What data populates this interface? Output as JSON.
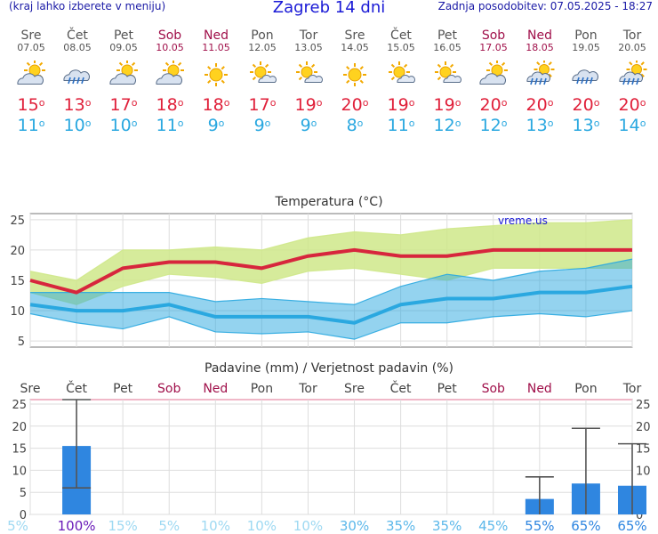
{
  "header": {
    "left": "(kraj lahko izberete v meniju)",
    "title": "Zagreb 14 dni",
    "updated": "Zadnja posodobitev: 07.05.2025 - 18:27"
  },
  "days": [
    {
      "name": "Sre",
      "date": "07.05",
      "weekend": false,
      "icon": "partly-cloudy-icon",
      "tmax": "15",
      "tmin": "11"
    },
    {
      "name": "Čet",
      "date": "08.05",
      "weekend": false,
      "icon": "rain-cloud-icon",
      "tmax": "13",
      "tmin": "10"
    },
    {
      "name": "Pet",
      "date": "09.05",
      "weekend": false,
      "icon": "partly-cloudy-icon",
      "tmax": "17",
      "tmin": "10"
    },
    {
      "name": "Sob",
      "date": "10.05",
      "weekend": true,
      "icon": "partly-cloudy-icon",
      "tmax": "18",
      "tmin": "11"
    },
    {
      "name": "Ned",
      "date": "11.05",
      "weekend": true,
      "icon": "sun-icon",
      "tmax": "18",
      "tmin": "9"
    },
    {
      "name": "Pon",
      "date": "12.05",
      "weekend": false,
      "icon": "sun-small-cloud-icon",
      "tmax": "17",
      "tmin": "9"
    },
    {
      "name": "Tor",
      "date": "13.05",
      "weekend": false,
      "icon": "sun-small-cloud-icon",
      "tmax": "19",
      "tmin": "9"
    },
    {
      "name": "Sre",
      "date": "14.05",
      "weekend": false,
      "icon": "sun-icon",
      "tmax": "20",
      "tmin": "8"
    },
    {
      "name": "Čet",
      "date": "15.05",
      "weekend": false,
      "icon": "sun-small-cloud-icon",
      "tmax": "19",
      "tmin": "11"
    },
    {
      "name": "Pet",
      "date": "16.05",
      "weekend": false,
      "icon": "sun-small-cloud-icon",
      "tmax": "19",
      "tmin": "12"
    },
    {
      "name": "Sob",
      "date": "17.05",
      "weekend": true,
      "icon": "partly-cloudy-icon",
      "tmax": "20",
      "tmin": "12"
    },
    {
      "name": "Ned",
      "date": "18.05",
      "weekend": true,
      "icon": "sun-rain-icon",
      "tmax": "20",
      "tmin": "13"
    },
    {
      "name": "Pon",
      "date": "19.05",
      "weekend": false,
      "icon": "rain-cloud-icon",
      "tmax": "20",
      "tmin": "13"
    },
    {
      "name": "Tor",
      "date": "20.05",
      "weekend": false,
      "icon": "sun-rain-icon",
      "tmax": "20",
      "tmin": "14"
    }
  ],
  "chart_data": [
    {
      "type": "line",
      "title": "Temperatura (°C)",
      "watermark": "vreme.us",
      "ylim": [
        4,
        26
      ],
      "yticks": [
        5,
        10,
        15,
        20,
        25
      ],
      "grid": true,
      "colors": {
        "max": "#d7263d",
        "max_band": "#cfe88a",
        "min": "#2aa8e0",
        "min_band": "#8fd9ee",
        "overlap": "#6fcf8e"
      },
      "series": [
        {
          "key": "max",
          "values": [
            15,
            13,
            17,
            18,
            18,
            17,
            19,
            20,
            19,
            19,
            20,
            20,
            20,
            20
          ]
        },
        {
          "key": "max_hi",
          "values": [
            16.5,
            15,
            20,
            20,
            20.5,
            20,
            22,
            23,
            22.5,
            23.5,
            24,
            24.5,
            24.5,
            25
          ]
        },
        {
          "key": "max_lo",
          "values": [
            13,
            11,
            14,
            16,
            15.5,
            14.5,
            16.5,
            17,
            16,
            15,
            17,
            17,
            17,
            17
          ]
        },
        {
          "key": "min",
          "values": [
            11,
            10,
            10,
            11,
            9,
            9,
            9,
            8,
            11,
            12,
            12,
            13,
            13,
            14
          ]
        },
        {
          "key": "min_hi",
          "values": [
            13,
            13,
            13,
            13,
            11.5,
            12,
            11.5,
            11,
            14,
            16,
            15,
            16.5,
            17,
            18.5
          ]
        },
        {
          "key": "min_lo",
          "values": [
            9.5,
            8,
            7,
            9,
            6.5,
            6.2,
            6.5,
            5.3,
            8,
            8,
            9,
            9.5,
            9,
            10
          ]
        }
      ]
    },
    {
      "type": "bar",
      "title": "Padavine (mm) / Verjetnost padavin (%)",
      "categories": [
        "Sre",
        "Čet",
        "Pet",
        "Sob",
        "Ned",
        "Pon",
        "Tor",
        "Sre",
        "Čet",
        "Pet",
        "Sob",
        "Ned",
        "Pon",
        "Tor"
      ],
      "weekend": [
        false,
        false,
        false,
        true,
        true,
        false,
        false,
        false,
        false,
        false,
        true,
        true,
        false,
        false
      ],
      "ylim": [
        0,
        26
      ],
      "yticks": [
        0,
        5,
        10,
        15,
        20,
        25
      ],
      "values": [
        0,
        15.5,
        0,
        0,
        0,
        0,
        0,
        0,
        0,
        0,
        0,
        3.5,
        7,
        6.5
      ],
      "err_lo": [
        null,
        6,
        null,
        null,
        null,
        null,
        null,
        null,
        null,
        null,
        null,
        0,
        0,
        0
      ],
      "err_hi": [
        null,
        26,
        null,
        null,
        null,
        null,
        null,
        null,
        null,
        null,
        null,
        8.5,
        19.5,
        16
      ],
      "probability": [
        "5%",
        "100%",
        "15%",
        "5%",
        "10%",
        "10%",
        "10%",
        "30%",
        "35%",
        "35%",
        "45%",
        "55%",
        "65%",
        "65%"
      ],
      "probability_colors": [
        "#9ed9f2",
        "#6a1bb8",
        "#9ed9f2",
        "#9ed9f2",
        "#9ed9f2",
        "#9ed9f2",
        "#9ed9f2",
        "#5cb8ea",
        "#5cb8ea",
        "#5cb8ea",
        "#5cb8ea",
        "#2f86e0",
        "#2f86e0",
        "#2f86e0"
      ],
      "bar_color": "#2f86e0"
    }
  ]
}
